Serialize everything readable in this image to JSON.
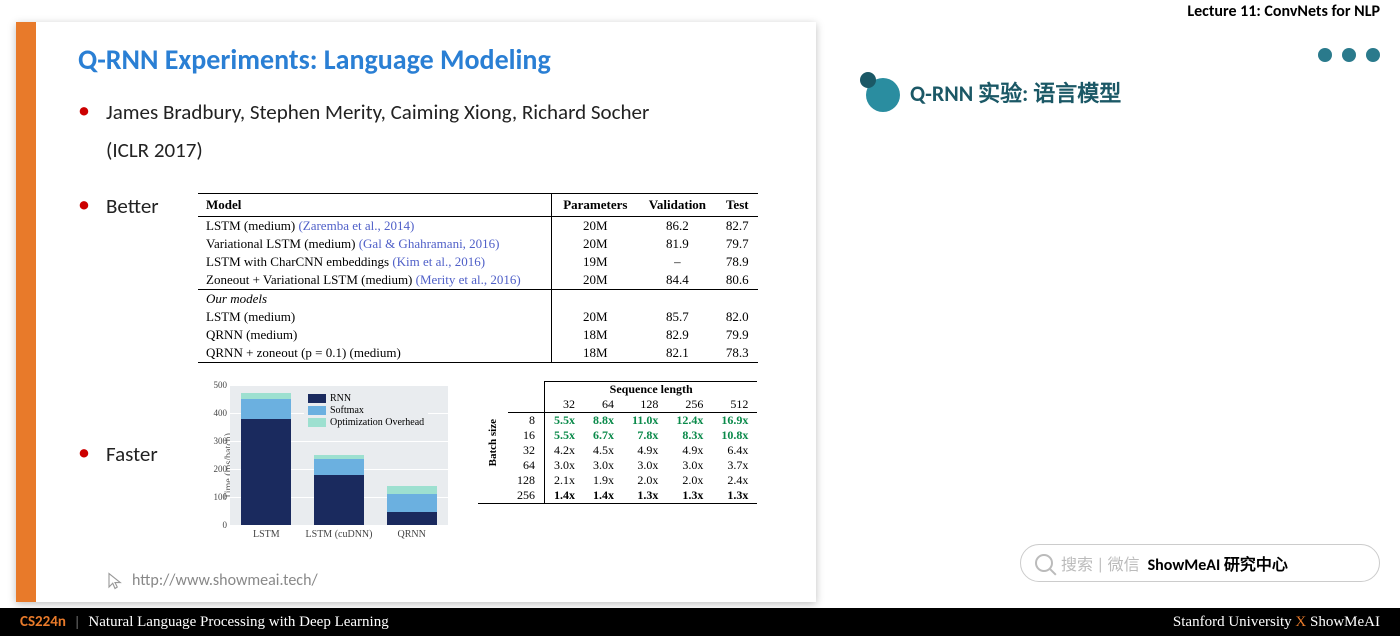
{
  "header": {
    "lecture": "Lecture 11: ConvNets for NLP"
  },
  "accent": {
    "dot_color": "#2a7a8c",
    "orange": "#e87a2a"
  },
  "slide": {
    "title": "Q-RNN Experiments: Language Modeling",
    "authors_line1": "James Bradbury, Stephen Merity, Caiming Xiong, Richard Socher",
    "authors_line2": "(ICLR 2017)",
    "better_label": "Better",
    "faster_label": "Faster",
    "footer_url": "http://www.showmeai.tech/"
  },
  "models_table": {
    "columns": [
      "Model",
      "Parameters",
      "Validation",
      "Test"
    ],
    "rows_top": [
      {
        "name": "LSTM (medium) ",
        "cite": "(Zaremba et al., 2014)",
        "params": "20M",
        "val": "86.2",
        "test": "82.7"
      },
      {
        "name": "Variational LSTM (medium) ",
        "cite": "(Gal & Ghahramani, 2016)",
        "params": "20M",
        "val": "81.9",
        "test": "79.7"
      },
      {
        "name": "LSTM with CharCNN embeddings ",
        "cite": "(Kim et al., 2016)",
        "params": "19M",
        "val": "–",
        "test": "78.9"
      },
      {
        "name": "Zoneout + Variational LSTM (medium) ",
        "cite": "(Merity et al., 2016)",
        "params": "20M",
        "val": "84.4",
        "test": "80.6"
      }
    ],
    "our_label": "Our models",
    "rows_ours": [
      {
        "name": "LSTM (medium)",
        "params": "20M",
        "val": "85.7",
        "test": "82.0"
      },
      {
        "name": "QRNN (medium)",
        "params": "18M",
        "val": "82.9",
        "test": "79.9"
      },
      {
        "name": "QRNN + zoneout (p = 0.1) (medium)",
        "params": "18M",
        "val": "82.1",
        "test": "78.3"
      }
    ]
  },
  "chart": {
    "ylabel": "Time (ms/batch)",
    "ymax": 500,
    "ytick_step": 100,
    "categories": [
      "LSTM",
      "LSTM (cuDNN)",
      "QRNN"
    ],
    "colors": {
      "rnn": "#1a2a5e",
      "softmax": "#6bb0e0",
      "opt": "#9de0d0"
    },
    "stacks": [
      {
        "rnn": 380,
        "softmax": 70,
        "opt": 20
      },
      {
        "rnn": 180,
        "softmax": 55,
        "opt": 15
      },
      {
        "rnn": 45,
        "softmax": 65,
        "opt": 30
      }
    ],
    "legend": [
      "RNN",
      "Softmax",
      "Optimization Overhead"
    ],
    "bg": "#e9ecef"
  },
  "speed_table": {
    "col_header": "Sequence length",
    "row_header": "Batch size",
    "seq_lens": [
      "32",
      "64",
      "128",
      "256",
      "512"
    ],
    "batch_sizes": [
      "8",
      "16",
      "32",
      "64",
      "128",
      "256"
    ],
    "cells": [
      [
        "5.5x",
        "8.8x",
        "11.0x",
        "12.4x",
        "16.9x"
      ],
      [
        "5.5x",
        "6.7x",
        "7.8x",
        "8.3x",
        "10.8x"
      ],
      [
        "4.2x",
        "4.5x",
        "4.9x",
        "4.9x",
        "6.4x"
      ],
      [
        "3.0x",
        "3.0x",
        "3.0x",
        "3.0x",
        "3.7x"
      ],
      [
        "2.1x",
        "1.9x",
        "2.0x",
        "2.0x",
        "2.4x"
      ],
      [
        "1.4x",
        "1.4x",
        "1.3x",
        "1.3x",
        "1.3x"
      ]
    ],
    "green_rows": 2,
    "bold_rows_from_bottom": 1
  },
  "chinese": {
    "text": "Q-RNN 实验: 语言模型"
  },
  "search": {
    "hint": "搜索 | 微信",
    "brand": "ShowMeAI 研究中心"
  },
  "bottom": {
    "course": "CS224n",
    "subtitle": "Natural Language Processing with Deep Learning",
    "right1": "Stanford University",
    "x": "X",
    "right2": "ShowMeAI"
  }
}
